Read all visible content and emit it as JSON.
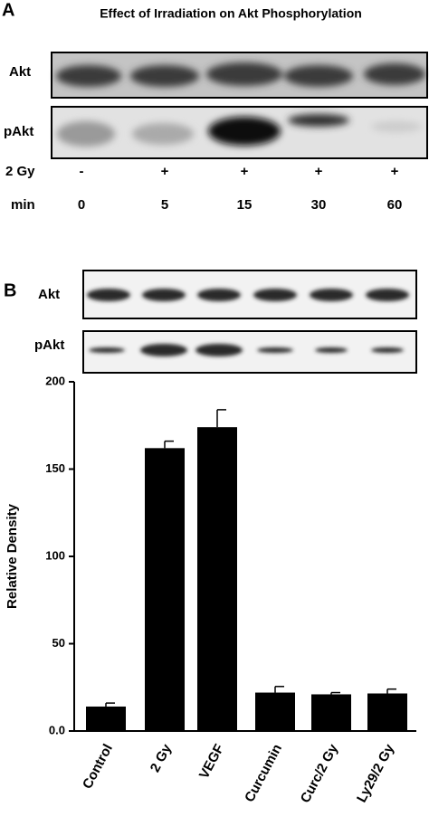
{
  "panel_a": {
    "label": "A",
    "title": "Effect of Irradiation on Akt Phosphorylation",
    "blot_labels": [
      "Akt",
      "pAkt"
    ],
    "row_labels": [
      "2 Gy",
      "min"
    ],
    "irradiation": [
      "-",
      "+",
      "+",
      "+",
      "+"
    ],
    "minutes": [
      0,
      5,
      15,
      30,
      60
    ]
  },
  "panel_b": {
    "label": "B",
    "blot_labels": [
      "Akt",
      "pAkt"
    ]
  },
  "chart_data": {
    "type": "bar",
    "ylabel": "Relative Density",
    "categories": [
      "Control",
      "2 Gy",
      "VEGF",
      "Curcumin",
      "Curc/2 Gy",
      "Ly29/2 Gy"
    ],
    "series": [
      {
        "color": "#000000",
        "values": [
          14,
          162,
          174,
          22,
          21,
          21.5
        ],
        "errors": [
          2,
          4,
          10,
          3.5,
          1,
          2.5
        ]
      }
    ],
    "ylim": [
      0,
      200
    ],
    "yticks": [
      {
        "value": 0,
        "label": "0.0"
      },
      50,
      100,
      150,
      200
    ]
  }
}
